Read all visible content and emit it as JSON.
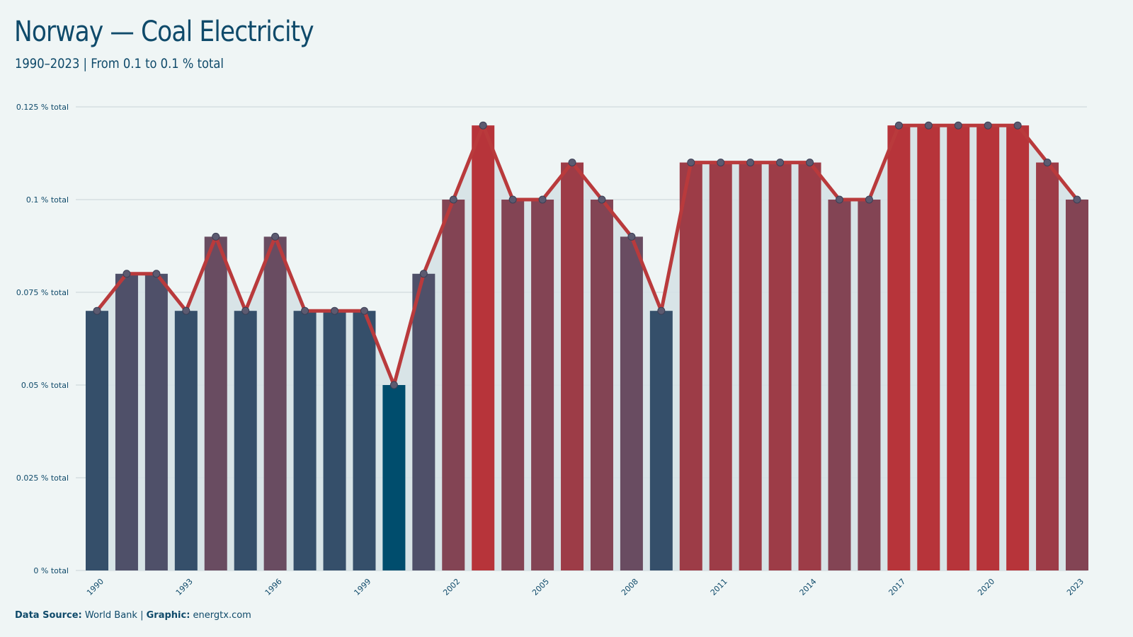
{
  "header": {
    "title": "Norway — Coal Electricity",
    "subtitle": "1990–2023 | From 0.1 to 0.1 % total"
  },
  "footer": {
    "source_label": "Data Source:",
    "source_value": "World Bank",
    "separator": "|",
    "graphic_label": "Graphic:",
    "graphic_value": "energtx.com"
  },
  "colors": {
    "low": "#004d6d",
    "mid": "#5c5068",
    "high": "#b7343a",
    "line": "#b93a3c",
    "point_fill": "#5c5a70",
    "area": "#d5e2e6",
    "grid": "#c8d4d8",
    "text": "#0f4a6a"
  },
  "chart_data": {
    "type": "bar",
    "title": "Norway — Coal Electricity",
    "xlabel": "",
    "ylabel": "",
    "categories": [
      "1990",
      "1991",
      "1992",
      "1993",
      "1994",
      "1995",
      "1996",
      "1997",
      "1998",
      "1999",
      "2000",
      "2001",
      "2002",
      "2003",
      "2004",
      "2005",
      "2006",
      "2007",
      "2008",
      "2009",
      "2010",
      "2011",
      "2012",
      "2013",
      "2014",
      "2015",
      "2016",
      "2017",
      "2018",
      "2019",
      "2020",
      "2021",
      "2022",
      "2023"
    ],
    "values": [
      0.07,
      0.08,
      0.08,
      0.07,
      0.09,
      0.07,
      0.09,
      0.07,
      0.07,
      0.07,
      0.05,
      0.08,
      0.1,
      0.12,
      0.1,
      0.1,
      0.11,
      0.1,
      0.09,
      0.07,
      0.11,
      0.11,
      0.11,
      0.11,
      0.11,
      0.1,
      0.1,
      0.12,
      0.12,
      0.12,
      0.12,
      0.12,
      0.11,
      0.1
    ],
    "x_tick_labels": [
      "1990",
      "1993",
      "1996",
      "1999",
      "2002",
      "2005",
      "2008",
      "2011",
      "2014",
      "2017",
      "2020",
      "2023"
    ],
    "y_ticks": [
      0,
      0.025,
      0.05,
      0.075,
      0.1,
      0.125
    ],
    "y_tick_labels": [
      "0 % total",
      "0.025 % total",
      "0.05 % total",
      "0.075 % total",
      "0.1 % total",
      "0.125 % total"
    ],
    "ylim": [
      0,
      0.125
    ],
    "grid": true,
    "overlay": "line with markers and shaded area"
  }
}
